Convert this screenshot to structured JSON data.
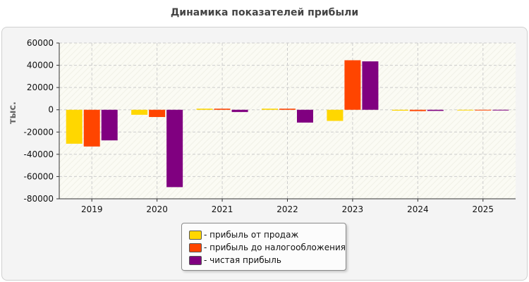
{
  "chart_data": {
    "type": "bar",
    "title": "Динамика показателей прибыли",
    "ylabel": "тыс.",
    "xlabel": "",
    "categories": [
      "2019",
      "2020",
      "2021",
      "2022",
      "2023",
      "2024",
      "2025"
    ],
    "ylim": [
      -80000,
      60000
    ],
    "yticks": [
      60000,
      40000,
      20000,
      0,
      -20000,
      -40000,
      -60000,
      -80000
    ],
    "grid": true,
    "legend_position": "bottom-center",
    "series": [
      {
        "name": "- прибыль от продаж",
        "color": "#ffd700",
        "values": [
          -30500,
          -4500,
          1000,
          1000,
          -10000,
          -800,
          -500
        ]
      },
      {
        "name": "- прибыль до налогообложения",
        "color": "#ff4500",
        "values": [
          -33000,
          -6500,
          1000,
          1000,
          44500,
          -1200,
          -500
        ]
      },
      {
        "name": "- чистая прибыль",
        "color": "#800080",
        "values": [
          -27500,
          -69500,
          -2000,
          -11500,
          43500,
          -1000,
          -500
        ]
      }
    ]
  }
}
